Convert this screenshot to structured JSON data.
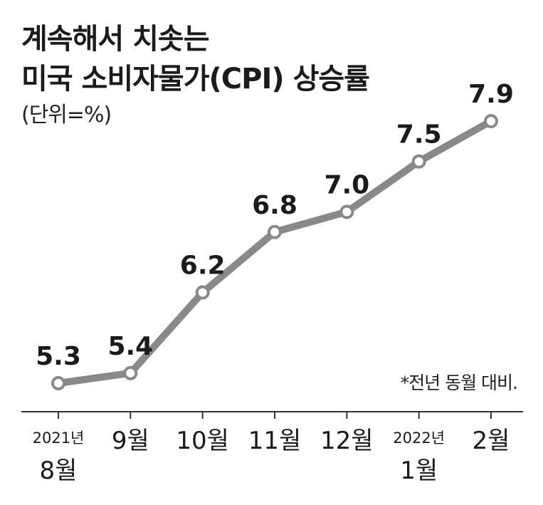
{
  "title_line1": "계속해서 치솟는",
  "title_line2": "미국 소비자물가(CPI) 상승률",
  "unit": "(단위=%)",
  "note": "*전년 동월 대비.",
  "colors": {
    "line": "#898989",
    "marker_fill": "#ffffff",
    "axis": "#333333",
    "text": "#1b1b1b"
  },
  "chart_data": {
    "type": "line",
    "categories": [
      "2021년 8월",
      "9월",
      "10월",
      "11월",
      "12월",
      "2022년 1월",
      "2월"
    ],
    "x_labels": [
      {
        "year": "2021년",
        "month": "8월"
      },
      {
        "year": "",
        "month": "9월"
      },
      {
        "year": "",
        "month": "10월"
      },
      {
        "year": "",
        "month": "11월"
      },
      {
        "year": "",
        "month": "12월"
      },
      {
        "year": "2022년",
        "month": "1월"
      },
      {
        "year": "",
        "month": "2월"
      }
    ],
    "values": [
      5.3,
      5.4,
      6.2,
      6.8,
      7.0,
      7.5,
      7.9
    ],
    "value_labels": [
      "5.3",
      "5.4",
      "6.2",
      "6.8",
      "7.0",
      "7.5",
      "7.9"
    ],
    "grid": false,
    "legend": "none"
  }
}
